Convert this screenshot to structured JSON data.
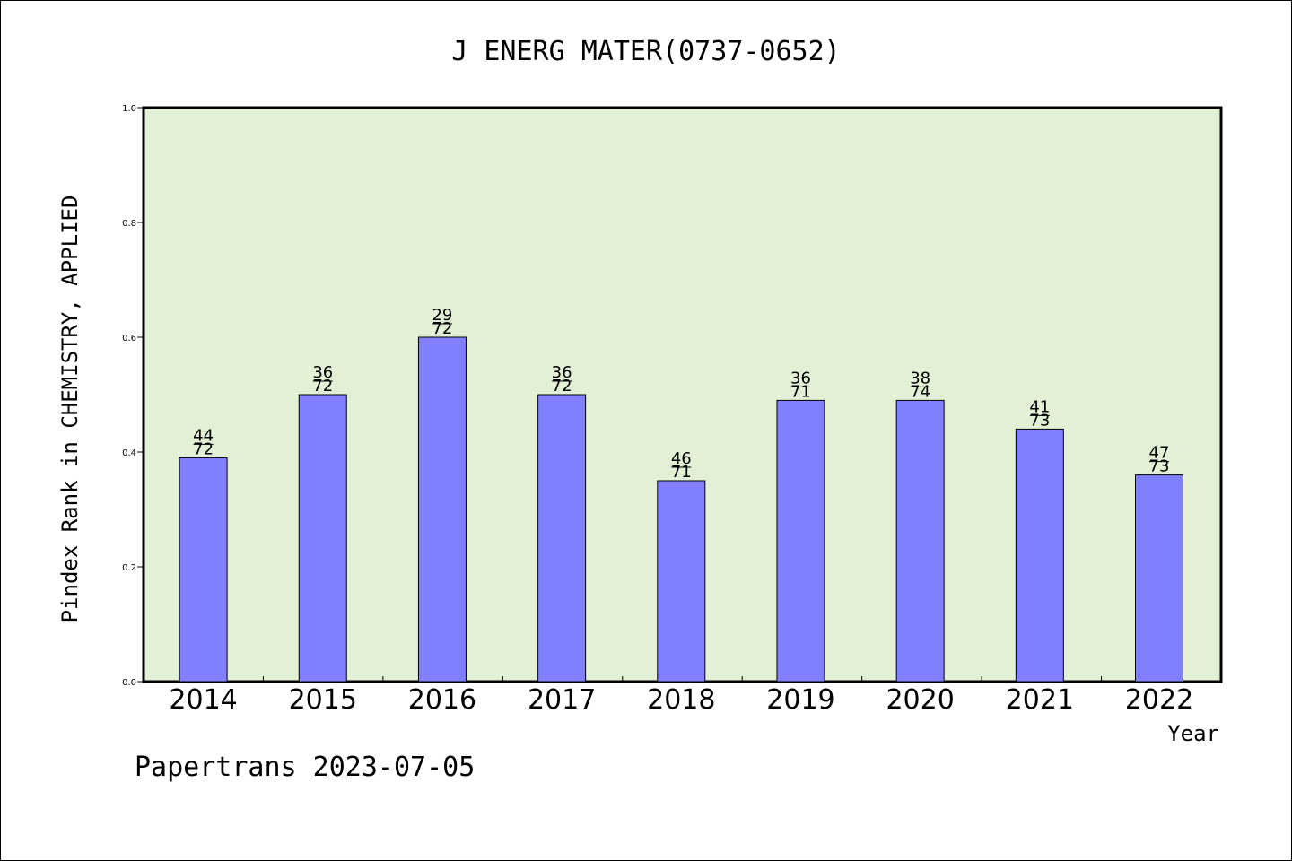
{
  "chart_data": {
    "type": "bar",
    "title": "J ENERG MATER(0737-0652)",
    "xlabel": "Year",
    "ylabel": "Pindex Rank in CHEMISTRY, APPLIED",
    "ylim": [
      0,
      1.0
    ],
    "yticks": [
      "0.0",
      "0.2",
      "0.4",
      "0.6",
      "0.8",
      "1.0"
    ],
    "categories": [
      "2014",
      "2015",
      "2016",
      "2017",
      "2018",
      "2019",
      "2020",
      "2021",
      "2022"
    ],
    "values": [
      0.39,
      0.5,
      0.6,
      0.5,
      0.35,
      0.49,
      0.49,
      0.44,
      0.36
    ],
    "rank_labels": [
      "44",
      "36",
      "29",
      "36",
      "46",
      "36",
      "38",
      "41",
      "47"
    ],
    "total_labels": [
      "72",
      "72",
      "72",
      "72",
      "71",
      "71",
      "74",
      "73",
      "73"
    ],
    "grid": false,
    "colors": {
      "plot_background": "#e2f0d6",
      "bar": "#8080ff",
      "bar_edge": "#000000"
    }
  },
  "footer": "Papertrans 2023-07-05"
}
